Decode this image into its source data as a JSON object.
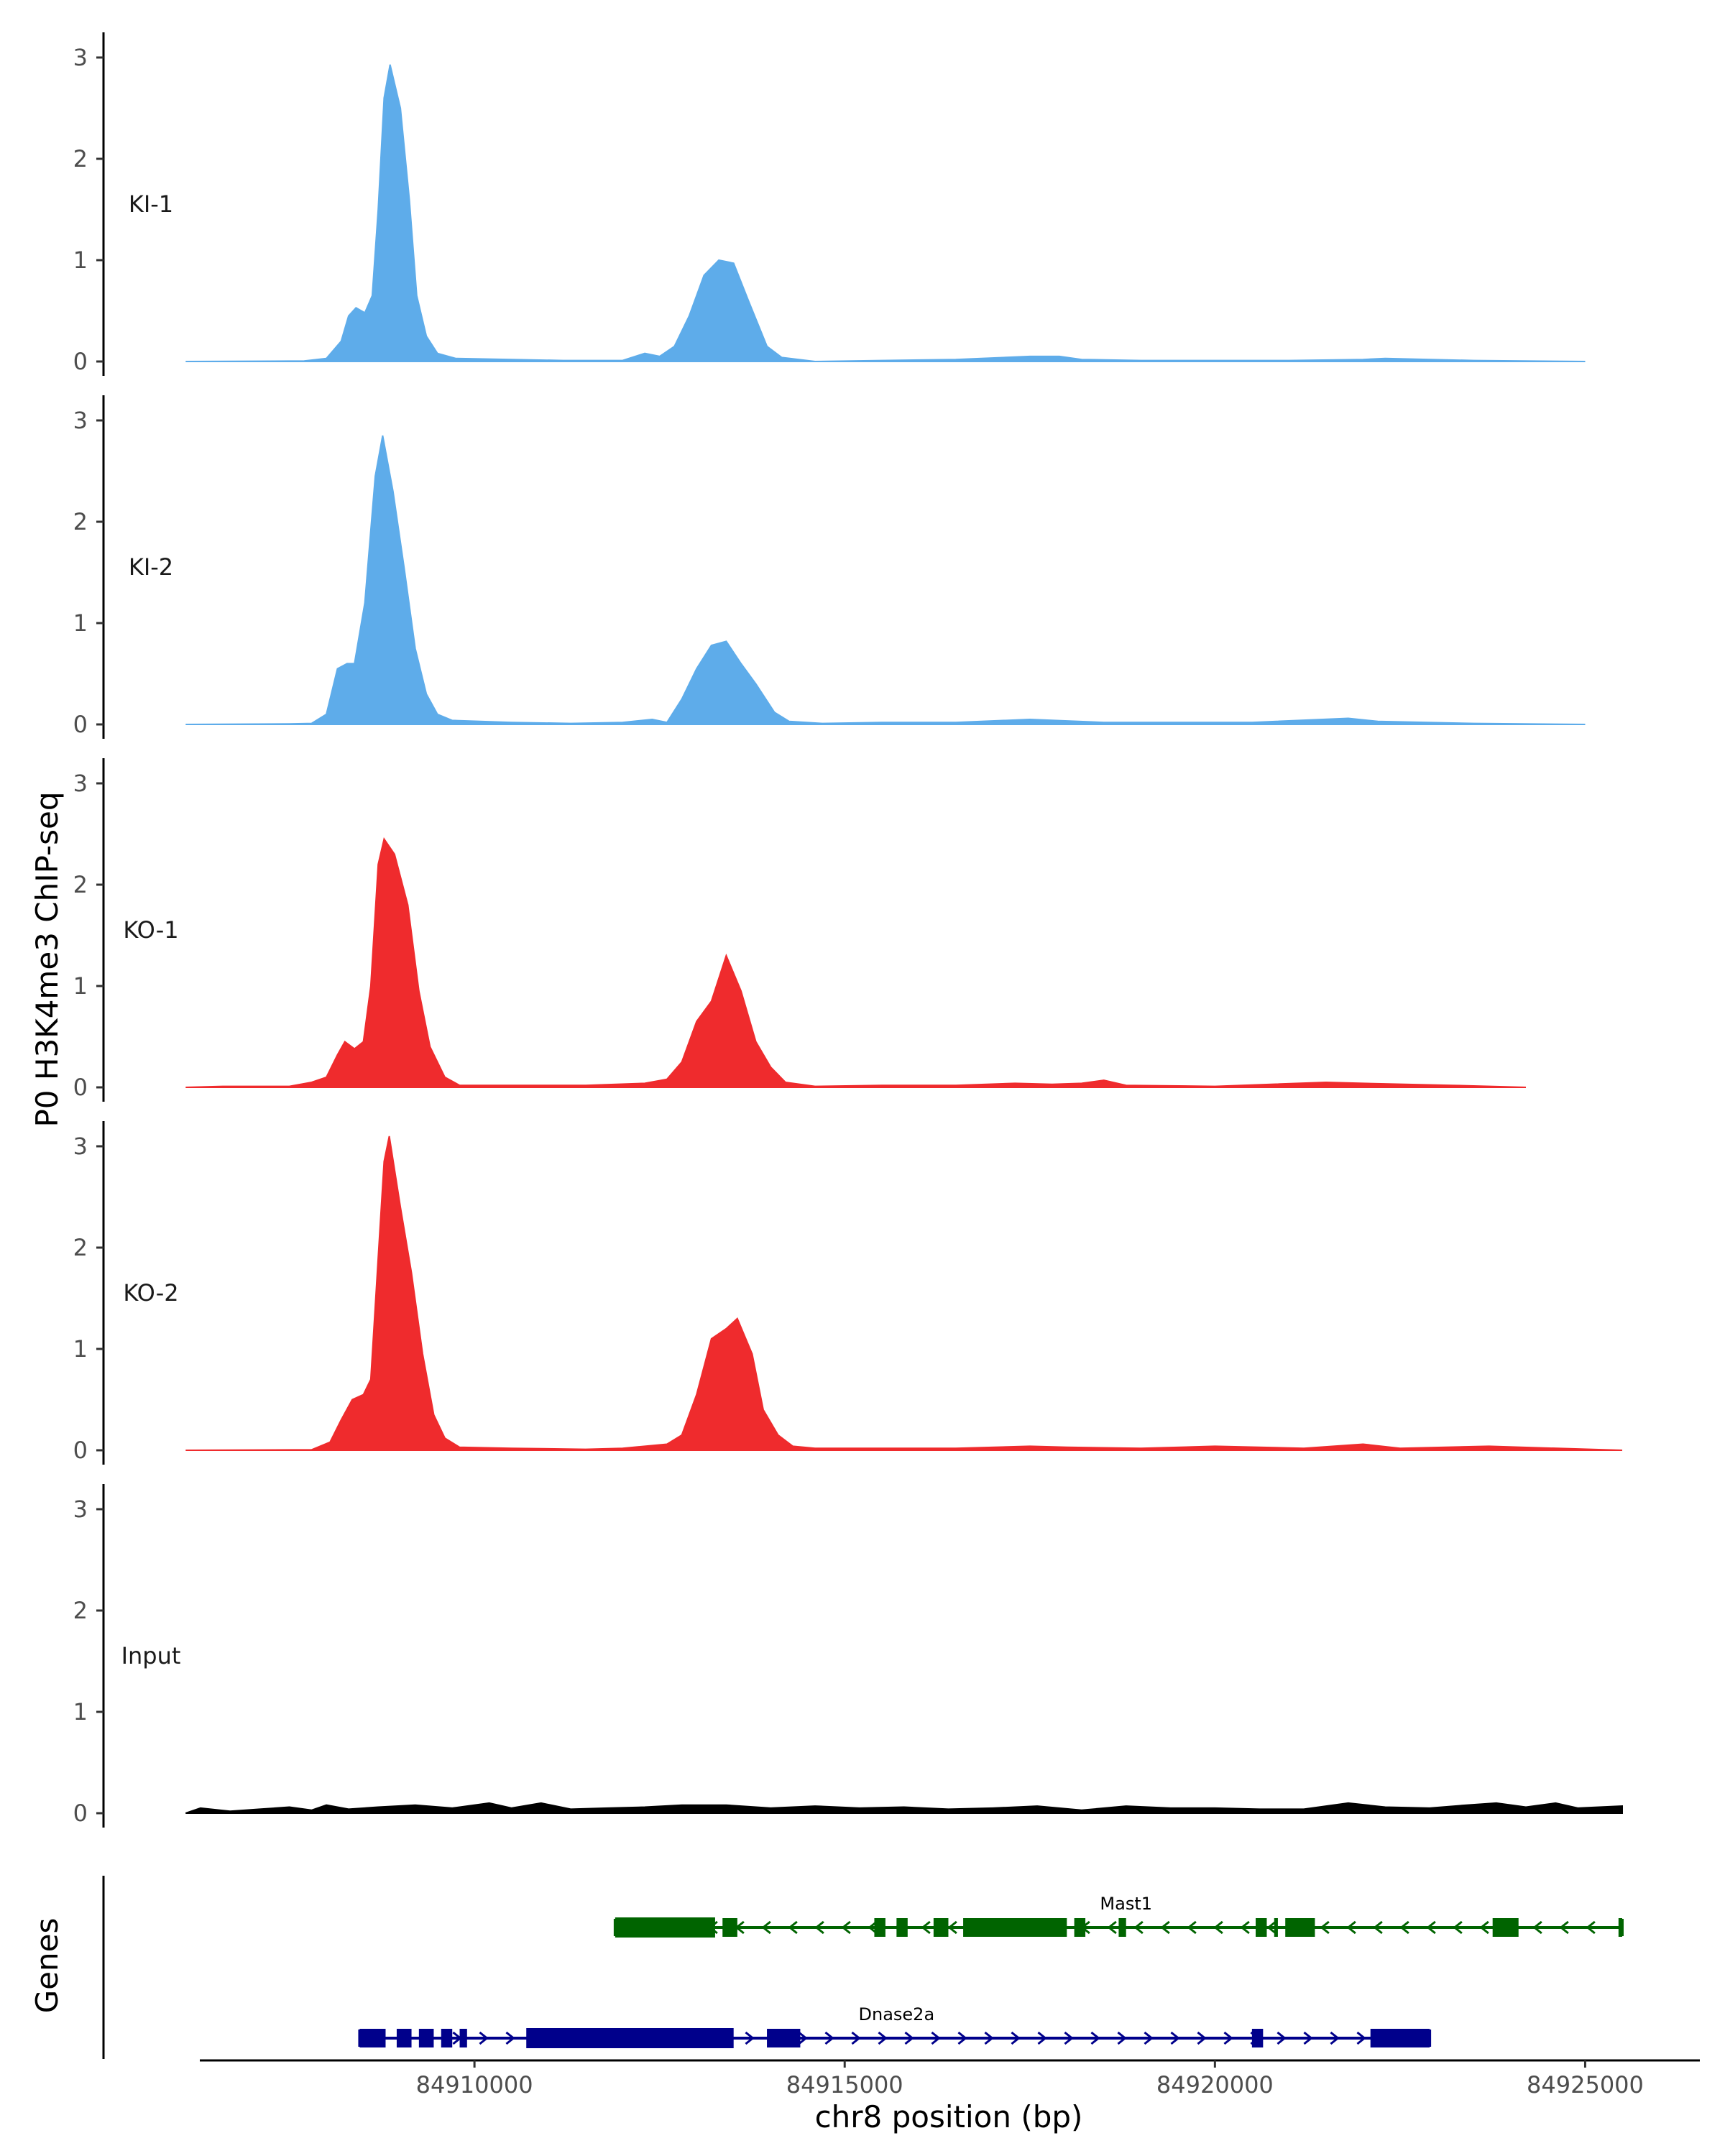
{
  "chart_data": {
    "type": "area",
    "ylabel": "P0 H3K4me3 ChIP-seq",
    "xlabel": "chr8 position (bp)",
    "ylim": [
      0,
      3.2
    ],
    "yticks": [
      0,
      1,
      2,
      3
    ],
    "xlim": [
      84905000,
      84926500
    ],
    "xticks": [
      84910000,
      84915000,
      84920000,
      84925000
    ],
    "xtick_labels": [
      "84910000",
      "84915000",
      "84920000",
      "84925000"
    ],
    "genes_label": "Genes",
    "tracks": [
      {
        "name": "KI-1",
        "color": "#5eacea",
        "points": [
          [
            84906100,
            0
          ],
          [
            84907700,
            0.005
          ],
          [
            84908000,
            0.03
          ],
          [
            84908200,
            0.2
          ],
          [
            84908300,
            0.45
          ],
          [
            84908400,
            0.53
          ],
          [
            84908520,
            0.48
          ],
          [
            84908620,
            0.65
          ],
          [
            84908700,
            1.5
          ],
          [
            84908780,
            2.6
          ],
          [
            84908860,
            2.93
          ],
          [
            84909000,
            2.5
          ],
          [
            84909120,
            1.6
          ],
          [
            84909220,
            0.65
          ],
          [
            84909350,
            0.25
          ],
          [
            84909500,
            0.08
          ],
          [
            84909750,
            0.03
          ],
          [
            84910500,
            0.02
          ],
          [
            84911200,
            0.01
          ],
          [
            84912000,
            0.01
          ],
          [
            84912300,
            0.08
          ],
          [
            84912500,
            0.05
          ],
          [
            84912700,
            0.15
          ],
          [
            84912900,
            0.45
          ],
          [
            84913100,
            0.85
          ],
          [
            84913300,
            1.0
          ],
          [
            84913500,
            0.97
          ],
          [
            84913700,
            0.6
          ],
          [
            84913950,
            0.15
          ],
          [
            84914150,
            0.04
          ],
          [
            84914600,
            0.0
          ],
          [
            84915500,
            0.01
          ],
          [
            84916500,
            0.02
          ],
          [
            84917500,
            0.05
          ],
          [
            84917900,
            0.05
          ],
          [
            84918200,
            0.02
          ],
          [
            84919000,
            0.01
          ],
          [
            84920000,
            0.01
          ],
          [
            84921000,
            0.01
          ],
          [
            84922000,
            0.02
          ],
          [
            84922300,
            0.03
          ],
          [
            84923500,
            0.01
          ],
          [
            84925000,
            0.0
          ]
        ]
      },
      {
        "name": "KI-2",
        "color": "#5eacea",
        "points": [
          [
            84906100,
            0
          ],
          [
            84907500,
            0.005
          ],
          [
            84907800,
            0.01
          ],
          [
            84908000,
            0.1
          ],
          [
            84908150,
            0.55
          ],
          [
            84908280,
            0.6
          ],
          [
            84908380,
            0.6
          ],
          [
            84908520,
            1.2
          ],
          [
            84908660,
            2.45
          ],
          [
            84908760,
            2.85
          ],
          [
            84908900,
            2.3
          ],
          [
            84909050,
            1.55
          ],
          [
            84909200,
            0.75
          ],
          [
            84909350,
            0.3
          ],
          [
            84909500,
            0.1
          ],
          [
            84909700,
            0.04
          ],
          [
            84910500,
            0.02
          ],
          [
            84911300,
            0.01
          ],
          [
            84912000,
            0.02
          ],
          [
            84912400,
            0.05
          ],
          [
            84912600,
            0.02
          ],
          [
            84912800,
            0.25
          ],
          [
            84913000,
            0.55
          ],
          [
            84913200,
            0.78
          ],
          [
            84913400,
            0.82
          ],
          [
            84913600,
            0.6
          ],
          [
            84913800,
            0.4
          ],
          [
            84914050,
            0.12
          ],
          [
            84914250,
            0.03
          ],
          [
            84914700,
            0.01
          ],
          [
            84915500,
            0.02
          ],
          [
            84916500,
            0.02
          ],
          [
            84917500,
            0.05
          ],
          [
            84918500,
            0.02
          ],
          [
            84919500,
            0.02
          ],
          [
            84920500,
            0.02
          ],
          [
            84921800,
            0.06
          ],
          [
            84922200,
            0.03
          ],
          [
            84923500,
            0.01
          ],
          [
            84925000,
            0.0
          ]
        ]
      },
      {
        "name": "KO-1",
        "color": "#ef2b2d",
        "points": [
          [
            84906100,
            0
          ],
          [
            84906600,
            0.01
          ],
          [
            84907500,
            0.01
          ],
          [
            84907800,
            0.05
          ],
          [
            84908000,
            0.1
          ],
          [
            84908150,
            0.32
          ],
          [
            84908250,
            0.45
          ],
          [
            84908380,
            0.38
          ],
          [
            84908500,
            0.45
          ],
          [
            84908600,
            1.0
          ],
          [
            84908700,
            2.2
          ],
          [
            84908780,
            2.45
          ],
          [
            84908920,
            2.3
          ],
          [
            84909100,
            1.8
          ],
          [
            84909250,
            0.95
          ],
          [
            84909400,
            0.4
          ],
          [
            84909600,
            0.1
          ],
          [
            84909800,
            0.02
          ],
          [
            84910500,
            0.02
          ],
          [
            84911500,
            0.02
          ],
          [
            84912300,
            0.04
          ],
          [
            84912600,
            0.08
          ],
          [
            84912800,
            0.25
          ],
          [
            84913000,
            0.65
          ],
          [
            84913200,
            0.85
          ],
          [
            84913400,
            1.3
          ],
          [
            84913600,
            0.95
          ],
          [
            84913800,
            0.45
          ],
          [
            84914000,
            0.2
          ],
          [
            84914200,
            0.05
          ],
          [
            84914600,
            0.01
          ],
          [
            84915500,
            0.02
          ],
          [
            84916500,
            0.02
          ],
          [
            84917300,
            0.04
          ],
          [
            84917800,
            0.03
          ],
          [
            84918200,
            0.04
          ],
          [
            84918500,
            0.07
          ],
          [
            84918800,
            0.02
          ],
          [
            84920000,
            0.01
          ],
          [
            84921500,
            0.05
          ],
          [
            84922000,
            0.04
          ],
          [
            84923200,
            0.02
          ],
          [
            84924200,
            0.0
          ]
        ]
      },
      {
        "name": "KO-2",
        "color": "#ef2b2d",
        "points": [
          [
            84906100,
            0
          ],
          [
            84907800,
            0.005
          ],
          [
            84908050,
            0.08
          ],
          [
            84908200,
            0.3
          ],
          [
            84908350,
            0.5
          ],
          [
            84908500,
            0.55
          ],
          [
            84908600,
            0.7
          ],
          [
            84908700,
            1.9
          ],
          [
            84908780,
            2.85
          ],
          [
            84908850,
            3.1
          ],
          [
            84909000,
            2.4
          ],
          [
            84909150,
            1.75
          ],
          [
            84909300,
            0.95
          ],
          [
            84909450,
            0.35
          ],
          [
            84909600,
            0.12
          ],
          [
            84909800,
            0.03
          ],
          [
            84910500,
            0.02
          ],
          [
            84911500,
            0.01
          ],
          [
            84912000,
            0.02
          ],
          [
            84912600,
            0.06
          ],
          [
            84912800,
            0.15
          ],
          [
            84913000,
            0.55
          ],
          [
            84913200,
            1.1
          ],
          [
            84913400,
            1.2
          ],
          [
            84913550,
            1.3
          ],
          [
            84913750,
            0.95
          ],
          [
            84913900,
            0.4
          ],
          [
            84914100,
            0.15
          ],
          [
            84914300,
            0.04
          ],
          [
            84914600,
            0.02
          ],
          [
            84915500,
            0.02
          ],
          [
            84916500,
            0.02
          ],
          [
            84917500,
            0.04
          ],
          [
            84918000,
            0.03
          ],
          [
            84919000,
            0.02
          ],
          [
            84920000,
            0.04
          ],
          [
            84921200,
            0.02
          ],
          [
            84922000,
            0.06
          ],
          [
            84922500,
            0.02
          ],
          [
            84923700,
            0.04
          ],
          [
            84925500,
            0.0
          ]
        ]
      },
      {
        "name": "Input",
        "color": "#000000",
        "points": [
          [
            84906100,
            0
          ],
          [
            84906300,
            0.05
          ],
          [
            84906700,
            0.02
          ],
          [
            84907100,
            0.04
          ],
          [
            84907500,
            0.06
          ],
          [
            84907800,
            0.03
          ],
          [
            84908000,
            0.08
          ],
          [
            84908300,
            0.04
          ],
          [
            84908700,
            0.06
          ],
          [
            84909200,
            0.08
          ],
          [
            84909700,
            0.05
          ],
          [
            84910200,
            0.1
          ],
          [
            84910500,
            0.05
          ],
          [
            84910900,
            0.1
          ],
          [
            84911300,
            0.04
          ],
          [
            84911800,
            0.05
          ],
          [
            84912300,
            0.06
          ],
          [
            84912800,
            0.08
          ],
          [
            84913400,
            0.08
          ],
          [
            84914000,
            0.05
          ],
          [
            84914600,
            0.07
          ],
          [
            84915200,
            0.05
          ],
          [
            84915800,
            0.06
          ],
          [
            84916400,
            0.04
          ],
          [
            84917000,
            0.05
          ],
          [
            84917600,
            0.07
          ],
          [
            84918200,
            0.03
          ],
          [
            84918800,
            0.07
          ],
          [
            84919400,
            0.05
          ],
          [
            84920000,
            0.05
          ],
          [
            84920600,
            0.04
          ],
          [
            84921200,
            0.04
          ],
          [
            84921800,
            0.1
          ],
          [
            84922300,
            0.06
          ],
          [
            84922900,
            0.05
          ],
          [
            84923400,
            0.08
          ],
          [
            84923800,
            0.1
          ],
          [
            84924200,
            0.06
          ],
          [
            84924600,
            0.1
          ],
          [
            84924900,
            0.05
          ],
          [
            84925500,
            0.07
          ]
        ]
      }
    ],
    "gene_models": [
      {
        "name": "Mast1",
        "color": "#006400",
        "strand": "-",
        "start": 84911900,
        "end": 84925500,
        "thick_blocks": [
          [
            84911900,
            84913250
          ]
        ],
        "exons": [
          [
            84913350,
            84913550
          ],
          [
            84915400,
            84915550
          ],
          [
            84915700,
            84915850
          ],
          [
            84916200,
            84916400
          ],
          [
            84916600,
            84918000
          ],
          [
            84918100,
            84918250
          ],
          [
            84918700,
            84918800
          ],
          [
            84920550,
            84920700
          ],
          [
            84920800,
            84920850
          ],
          [
            84920950,
            84921350
          ],
          [
            84923750,
            84924100
          ],
          [
            84925450,
            84925500
          ]
        ],
        "label_x": 84918800
      },
      {
        "name": "Dnase2a",
        "color": "#00008b",
        "strand": "+",
        "start": 84908450,
        "end": 84922900,
        "thick_blocks": [
          [
            84910700,
            84913500
          ]
        ],
        "exons": [
          [
            84908450,
            84908800
          ],
          [
            84908950,
            84909150
          ],
          [
            84909250,
            84909450
          ],
          [
            84909550,
            84909700
          ],
          [
            84909800,
            84909900
          ],
          [
            84913950,
            84914400
          ],
          [
            84920500,
            84920650
          ],
          [
            84922100,
            84922900
          ]
        ],
        "label_x": 84915700
      }
    ]
  }
}
